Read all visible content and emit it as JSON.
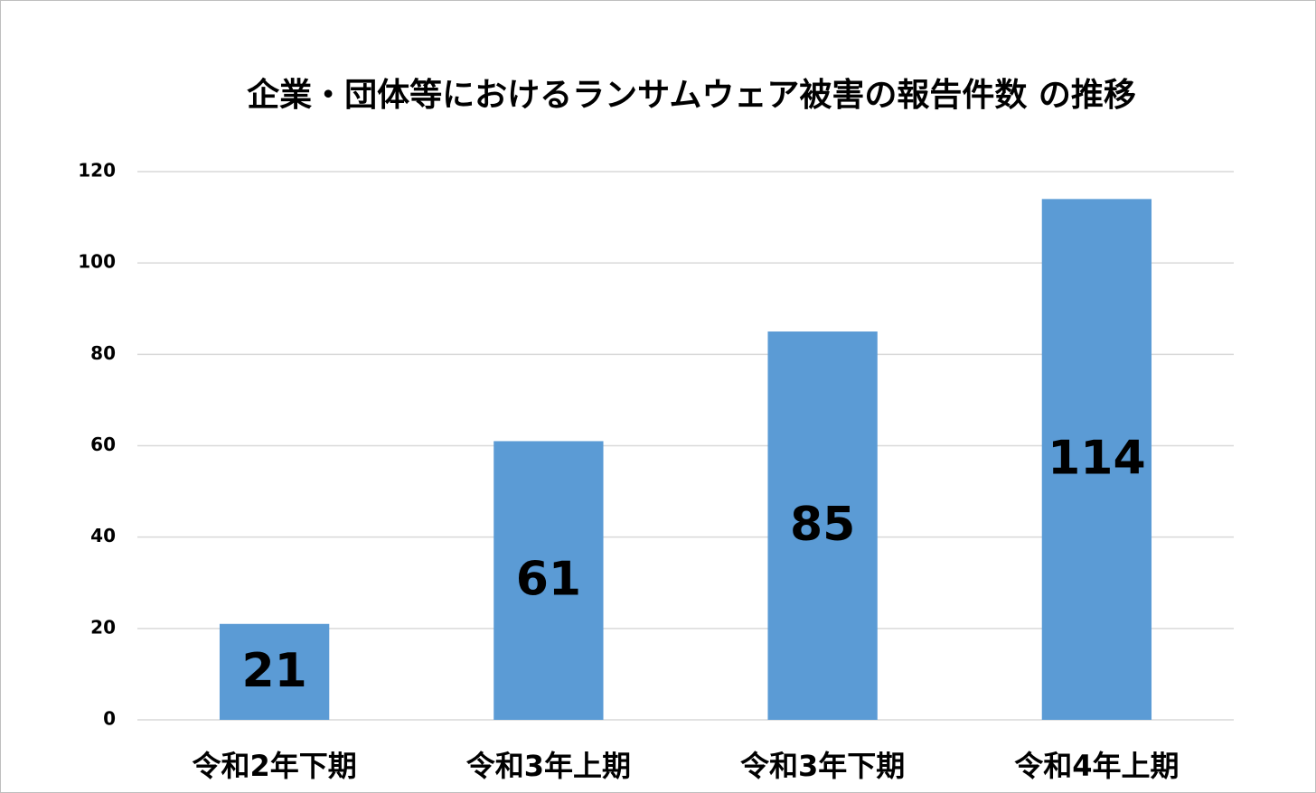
{
  "chart_data": {
    "type": "bar",
    "title": "企業・団体等におけるランサムウェア被害の報告件数 の推移",
    "categories": [
      "令和2年下期",
      "令和3年上期",
      "令和3年下期",
      "令和4年上期"
    ],
    "values": [
      21,
      61,
      85,
      114
    ],
    "color": "#5b9bd5",
    "ylim": [
      0,
      120
    ],
    "yticks": [
      0,
      20,
      40,
      60,
      80,
      100,
      120
    ],
    "grid": true,
    "data_labels": true
  }
}
